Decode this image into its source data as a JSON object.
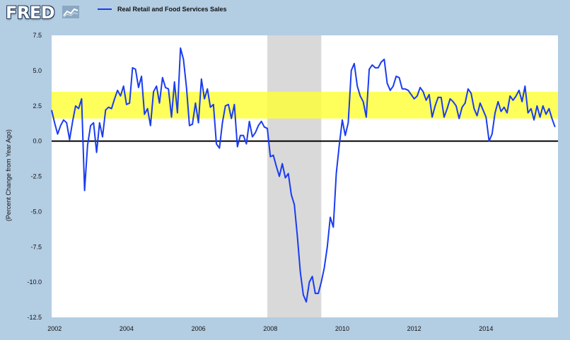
{
  "logo": {
    "text": "FRED",
    "icon": "graph-icon"
  },
  "legend": {
    "label": "Real Retail and Food Services Sales",
    "color": "#1a3cf0"
  },
  "colors": {
    "line": "#1a3cf0",
    "band": "#ffff33",
    "recession": "#d9d9d9",
    "background": "#b3cde3",
    "plot": "#ffffff"
  },
  "chart_data": {
    "type": "line",
    "title": "Real Retail and Food Services Sales",
    "xlabel": "",
    "ylabel": "(Percent Change from Year Ago)",
    "xlim": [
      2001.917,
      2016.0
    ],
    "ylim": [
      -12.5,
      7.5
    ],
    "yticks": [
      7.5,
      5.0,
      2.5,
      0.0,
      -2.5,
      -5.0,
      -7.5,
      -10.0,
      -12.5
    ],
    "ytick_labels": [
      "7.5",
      "5.0",
      "2.5",
      "0.0",
      "-2.5",
      "-5.0",
      "-7.5",
      "-10.0",
      "-12.5"
    ],
    "xticks": [
      2002,
      2004,
      2006,
      2008,
      2010,
      2012,
      2014
    ],
    "xtick_labels": [
      "2002",
      "2004",
      "2006",
      "2008",
      "2010",
      "2012",
      "2014"
    ],
    "band": {
      "from": 1.6,
      "to": 3.5
    },
    "recession": {
      "from": 2007.917,
      "to": 2009.417
    },
    "zero_line": 0,
    "series": [
      {
        "name": "Real Retail and Food Services Sales",
        "start": 2001.917,
        "step": 0.0833333,
        "values": [
          2.2,
          1.3,
          0.5,
          1.1,
          1.5,
          1.3,
          0.1,
          1.4,
          2.5,
          2.3,
          3.0,
          -3.5,
          -0.3,
          1.1,
          1.3,
          -0.8,
          1.3,
          0.3,
          2.2,
          2.4,
          2.3,
          3.0,
          3.6,
          3.2,
          3.9,
          2.6,
          2.7,
          5.2,
          5.1,
          3.8,
          4.6,
          1.9,
          2.3,
          1.1,
          3.5,
          3.9,
          2.7,
          4.5,
          3.8,
          3.7,
          1.7,
          4.2,
          2.0,
          6.6,
          5.8,
          3.8,
          1.1,
          1.2,
          2.7,
          1.3,
          4.4,
          3.0,
          3.7,
          2.4,
          2.6,
          -0.2,
          -0.5,
          1.3,
          2.5,
          2.6,
          1.6,
          2.6,
          -0.4,
          0.4,
          0.4,
          -0.2,
          1.4,
          0.3,
          0.6,
          1.1,
          1.4,
          1.0,
          0.9,
          -1.1,
          -1.0,
          -1.8,
          -2.5,
          -1.6,
          -2.6,
          -2.3,
          -3.8,
          -4.5,
          -6.7,
          -9.3,
          -10.9,
          -11.4,
          -10.0,
          -9.6,
          -10.8,
          -10.8,
          -10.0,
          -9.0,
          -7.5,
          -5.4,
          -6.1,
          -2.3,
          -0.3,
          1.5,
          0.4,
          1.3,
          5.0,
          5.5,
          3.9,
          3.2,
          2.8,
          1.7,
          5.1,
          5.4,
          5.2,
          5.2,
          5.6,
          5.8,
          4.1,
          3.6,
          3.9,
          4.6,
          4.5,
          3.7,
          3.7,
          3.6,
          3.3,
          3.0,
          3.2,
          3.8,
          3.5,
          2.9,
          3.3,
          1.7,
          2.5,
          3.1,
          3.1,
          1.7,
          2.3,
          3.0,
          2.8,
          2.5,
          1.6,
          2.4,
          2.7,
          3.7,
          3.4,
          2.3,
          1.8,
          2.7,
          2.2,
          1.7,
          0.0,
          0.5,
          2.0,
          2.8,
          2.1,
          2.4,
          2.0,
          3.2,
          2.9,
          3.2,
          3.6,
          2.8,
          3.9,
          2.0,
          2.3,
          1.5,
          2.5,
          1.7,
          2.5,
          1.9,
          2.3,
          1.6,
          1.0
        ]
      }
    ]
  }
}
